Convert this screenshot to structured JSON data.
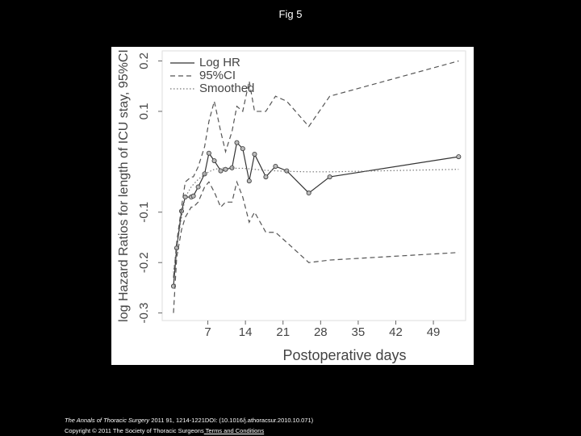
{
  "title": "Fig 5",
  "chart_data": {
    "type": "line",
    "xlabel": "Postoperative days",
    "ylabel": "log Hazard Ratios for length of ICU stay, 95%CI",
    "x": [
      0.6,
      1.2,
      2.1,
      2.8,
      3.9,
      4.3,
      5.2,
      6.4,
      7.2,
      8.2,
      9.4,
      10.3,
      11.5,
      12.4,
      13.5,
      14.7,
      15.7,
      17.8,
      19.6,
      21.7,
      25.8,
      29.7,
      53.7
    ],
    "series": [
      {
        "name": "Log HR",
        "color": "#333333",
        "dash": "solid",
        "markers": true,
        "values": [
          -0.247,
          -0.171,
          -0.098,
          -0.07,
          -0.07,
          -0.068,
          -0.05,
          -0.024,
          0.017,
          0.002,
          -0.018,
          -0.015,
          -0.012,
          0.038,
          0.026,
          -0.038,
          0.015,
          -0.03,
          -0.009,
          -0.018,
          -0.062,
          -0.03,
          0.01
        ]
      },
      {
        "name": "95%CI",
        "color": "#555555",
        "dash": "dashed",
        "markers": false,
        "values": [
          -0.23,
          -0.16,
          -0.09,
          -0.04,
          -0.03,
          -0.03,
          -0.01,
          0.03,
          0.08,
          0.12,
          0.06,
          0.02,
          0.06,
          0.11,
          0.1,
          0.16,
          0.1,
          0.1,
          0.13,
          0.12,
          0.07,
          0.13,
          0.2
        ]
      },
      {
        "name": "95%CI",
        "color": "#555555",
        "dash": "dashed",
        "markers": false,
        "legend": false,
        "values": [
          -0.3,
          -0.19,
          -0.135,
          -0.11,
          -0.09,
          -0.09,
          -0.08,
          -0.05,
          -0.04,
          -0.06,
          -0.09,
          -0.08,
          -0.08,
          -0.04,
          -0.07,
          -0.12,
          -0.1,
          -0.14,
          -0.14,
          -0.16,
          -0.2,
          -0.195,
          -0.18
        ]
      },
      {
        "name": "Smoothed",
        "color": "#777777",
        "dash": "dotted",
        "markers": false,
        "values": [
          -0.22,
          -0.17,
          -0.11,
          -0.07,
          -0.05,
          -0.045,
          -0.035,
          -0.025,
          -0.02,
          -0.015,
          -0.013,
          -0.012,
          -0.012,
          -0.013,
          -0.013,
          -0.014,
          -0.015,
          -0.017,
          -0.018,
          -0.019,
          -0.02,
          -0.02,
          -0.015
        ]
      }
    ],
    "xlim": [
      -1.5,
      55
    ],
    "ylim": [
      -0.315,
      0.22
    ],
    "xticks": [
      7,
      14,
      21,
      28,
      35,
      42,
      49
    ],
    "yticks": [
      -0.3,
      -0.2,
      -0.1,
      0.1,
      0.2
    ],
    "legend": "upper left"
  },
  "footer": {
    "journal": "The Annals of Thoracic Surgery",
    "citation": " 2011 91, 1214-1221DOI: (10.1016/j.athoracsur.2010.10.071)",
    "copyright": "Copyright © 2011 The Society of Thoracic Surgeons",
    "link": " Terms and Conditions"
  }
}
